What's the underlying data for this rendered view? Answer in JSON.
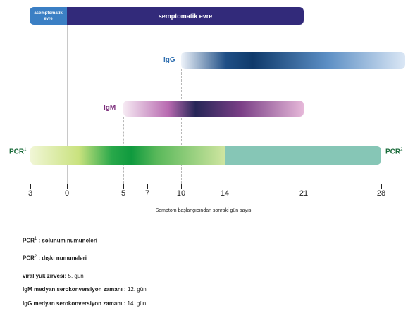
{
  "phases": {
    "asymptomatic": "asemptomatik evre",
    "symptomatic": "semptomatik evre"
  },
  "bars": {
    "igg": "IgG",
    "igm": "IgM",
    "pcr": "PCR",
    "pcr1_marker": "1",
    "pcr2_marker": "2"
  },
  "axis": {
    "ticks": [
      "3",
      "0",
      "5",
      "7",
      "10",
      "14",
      "21",
      "28"
    ],
    "title": "Semptom başlangıcından sonraki gün sayısı"
  },
  "legend": {
    "pcr1_label": "PCR",
    "pcr1_marker": "1",
    "pcr1_text": ": solunum numuneleri",
    "pcr2_label": "PCR",
    "pcr2_marker": "2",
    "pcr2_text": ": dışkı numuneleri",
    "peak_label": "viral yük zirvesi:",
    "peak_value": "5. gün",
    "igm_label": "IgM medyan serokonversiyon zamanı :",
    "igm_value": "12. gün",
    "igg_label": "IgG medyan serokonversiyon zamanı :",
    "igg_value": "14. gün"
  },
  "colors": {
    "asymptomatic": "#3b7fc4",
    "symptomatic": "#322a7a",
    "igg": "#1f4f86",
    "igm": "#7a3f86",
    "pcr_respiratory": "#0f9a3e",
    "pcr_stool": "#86c6b6",
    "pcr_text": "#1a6b3a"
  }
}
